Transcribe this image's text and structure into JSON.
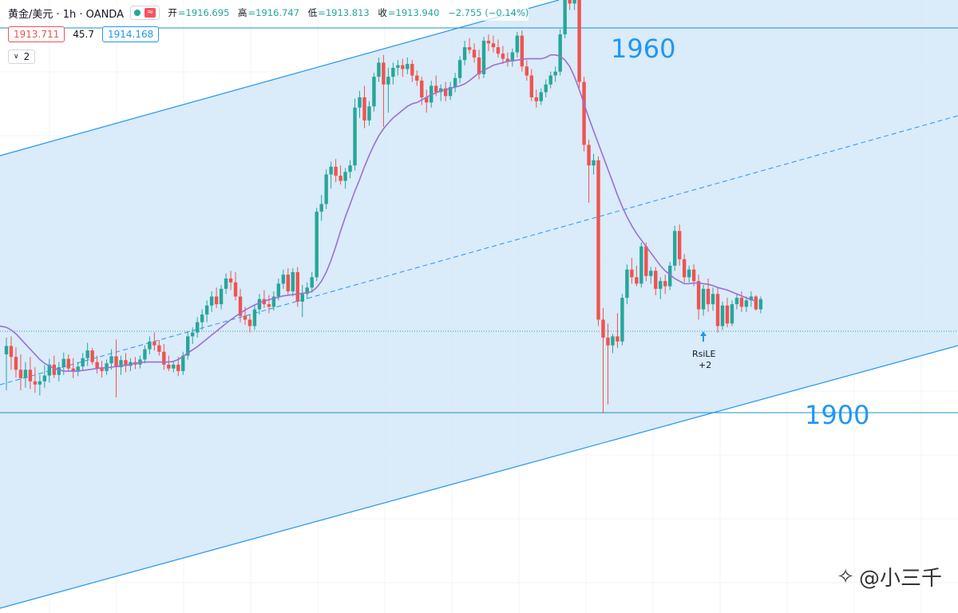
{
  "header": {
    "symbol": "黄金/美元 · 1h · OANDA",
    "approx_badge": "≈",
    "ohlc": {
      "open_label": "开",
      "open": "=1916.695",
      "high_label": "高",
      "high": "=1916.747",
      "low_label": "低",
      "low": "=1913.813",
      "close_label": "收",
      "close": "=1913.940",
      "change": "−2.755 (−0.14%)"
    }
  },
  "quote": {
    "bid": "1913.711",
    "spread": "45.7",
    "ask": "1914.168"
  },
  "indicator_toggle": {
    "label": "2"
  },
  "annotations": {
    "level_high": "1960",
    "level_low": "1900"
  },
  "signal": {
    "label": "RsiLE",
    "sub": "+2"
  },
  "watermark": {
    "text": "@小三千"
  },
  "colors": {
    "up": "#26a69a",
    "down": "#ef5350",
    "channel_fill": "#d6e9f9",
    "channel_line": "#2196f3",
    "ma": "#9c6fd0"
  },
  "chart_data": {
    "type": "candlestick",
    "price_range": [
      1897,
      1968
    ],
    "candles": [
      {
        "o": 1909.2,
        "h": 1911.8,
        "l": 1903.6,
        "c": 1910.5
      },
      {
        "o": 1910.5,
        "h": 1912.0,
        "l": 1906.8,
        "c": 1908.8
      },
      {
        "o": 1908.8,
        "h": 1910.3,
        "l": 1905.6,
        "c": 1906.8
      },
      {
        "o": 1906.8,
        "h": 1909.2,
        "l": 1903.6,
        "c": 1905.5
      },
      {
        "o": 1905.5,
        "h": 1908.0,
        "l": 1904.0,
        "c": 1906.8
      },
      {
        "o": 1906.8,
        "h": 1908.8,
        "l": 1903.8,
        "c": 1905.0
      },
      {
        "o": 1905.0,
        "h": 1907.2,
        "l": 1903.2,
        "c": 1904.5
      },
      {
        "o": 1904.5,
        "h": 1906.0,
        "l": 1902.8,
        "c": 1905.0
      },
      {
        "o": 1905.0,
        "h": 1907.5,
        "l": 1904.0,
        "c": 1905.9
      },
      {
        "o": 1905.9,
        "h": 1908.5,
        "l": 1904.8,
        "c": 1907.6
      },
      {
        "o": 1907.6,
        "h": 1909.0,
        "l": 1905.5,
        "c": 1906.0
      },
      {
        "o": 1906.0,
        "h": 1908.0,
        "l": 1905.0,
        "c": 1907.2
      },
      {
        "o": 1907.2,
        "h": 1909.5,
        "l": 1906.0,
        "c": 1908.5
      },
      {
        "o": 1908.5,
        "h": 1909.2,
        "l": 1906.5,
        "c": 1907.0
      },
      {
        "o": 1907.0,
        "h": 1908.6,
        "l": 1905.5,
        "c": 1906.5
      },
      {
        "o": 1906.5,
        "h": 1908.0,
        "l": 1905.8,
        "c": 1907.3
      },
      {
        "o": 1907.3,
        "h": 1909.4,
        "l": 1906.6,
        "c": 1908.6
      },
      {
        "o": 1908.6,
        "h": 1911.0,
        "l": 1907.4,
        "c": 1909.8
      },
      {
        "o": 1909.8,
        "h": 1910.2,
        "l": 1907.6,
        "c": 1908.0
      },
      {
        "o": 1908.0,
        "h": 1909.0,
        "l": 1906.2,
        "c": 1907.0
      },
      {
        "o": 1907.0,
        "h": 1908.2,
        "l": 1905.6,
        "c": 1906.6
      },
      {
        "o": 1906.6,
        "h": 1908.4,
        "l": 1906.0,
        "c": 1907.8
      },
      {
        "o": 1907.8,
        "h": 1910.0,
        "l": 1906.8,
        "c": 1908.9
      },
      {
        "o": 1908.9,
        "h": 1911.5,
        "l": 1902.5,
        "c": 1907.2
      },
      {
        "o": 1907.2,
        "h": 1909.0,
        "l": 1906.0,
        "c": 1908.3
      },
      {
        "o": 1908.3,
        "h": 1909.4,
        "l": 1906.4,
        "c": 1907.4
      },
      {
        "o": 1907.4,
        "h": 1908.6,
        "l": 1906.6,
        "c": 1908.0
      },
      {
        "o": 1908.0,
        "h": 1908.8,
        "l": 1906.9,
        "c": 1907.6
      },
      {
        "o": 1907.6,
        "h": 1909.0,
        "l": 1907.0,
        "c": 1908.4
      },
      {
        "o": 1908.4,
        "h": 1910.6,
        "l": 1907.8,
        "c": 1910.0
      },
      {
        "o": 1910.0,
        "h": 1912.0,
        "l": 1909.2,
        "c": 1911.2
      },
      {
        "o": 1911.2,
        "h": 1912.6,
        "l": 1909.8,
        "c": 1910.6
      },
      {
        "o": 1910.6,
        "h": 1911.4,
        "l": 1909.0,
        "c": 1909.6
      },
      {
        "o": 1909.6,
        "h": 1910.8,
        "l": 1906.8,
        "c": 1907.6
      },
      {
        "o": 1907.6,
        "h": 1909.0,
        "l": 1906.6,
        "c": 1907.0
      },
      {
        "o": 1907.0,
        "h": 1908.2,
        "l": 1906.4,
        "c": 1907.6
      },
      {
        "o": 1907.6,
        "h": 1908.8,
        "l": 1905.8,
        "c": 1906.6
      },
      {
        "o": 1906.6,
        "h": 1909.6,
        "l": 1906.0,
        "c": 1909.0
      },
      {
        "o": 1909.0,
        "h": 1912.6,
        "l": 1908.4,
        "c": 1912.0
      },
      {
        "o": 1912.0,
        "h": 1913.4,
        "l": 1910.8,
        "c": 1912.6
      },
      {
        "o": 1912.6,
        "h": 1915.0,
        "l": 1911.8,
        "c": 1914.2
      },
      {
        "o": 1914.2,
        "h": 1916.2,
        "l": 1913.0,
        "c": 1915.4
      },
      {
        "o": 1915.4,
        "h": 1917.6,
        "l": 1914.2,
        "c": 1916.8
      },
      {
        "o": 1916.8,
        "h": 1919.0,
        "l": 1915.8,
        "c": 1918.2
      },
      {
        "o": 1918.2,
        "h": 1919.6,
        "l": 1916.4,
        "c": 1917.0
      },
      {
        "o": 1917.0,
        "h": 1920.0,
        "l": 1916.2,
        "c": 1919.4
      },
      {
        "o": 1919.4,
        "h": 1921.8,
        "l": 1918.6,
        "c": 1921.0
      },
      {
        "o": 1921.0,
        "h": 1922.2,
        "l": 1919.2,
        "c": 1920.4
      },
      {
        "o": 1920.4,
        "h": 1922.0,
        "l": 1917.6,
        "c": 1918.2
      },
      {
        "o": 1918.2,
        "h": 1919.4,
        "l": 1914.2,
        "c": 1915.2
      },
      {
        "o": 1915.2,
        "h": 1916.6,
        "l": 1913.8,
        "c": 1914.6
      },
      {
        "o": 1914.6,
        "h": 1915.4,
        "l": 1912.6,
        "c": 1913.6
      },
      {
        "o": 1913.6,
        "h": 1917.0,
        "l": 1913.0,
        "c": 1916.2
      },
      {
        "o": 1916.2,
        "h": 1918.6,
        "l": 1915.4,
        "c": 1917.8
      },
      {
        "o": 1917.8,
        "h": 1919.2,
        "l": 1916.4,
        "c": 1917.0
      },
      {
        "o": 1917.0,
        "h": 1918.4,
        "l": 1915.6,
        "c": 1916.6
      },
      {
        "o": 1916.6,
        "h": 1919.0,
        "l": 1916.0,
        "c": 1918.2
      },
      {
        "o": 1918.2,
        "h": 1921.0,
        "l": 1917.6,
        "c": 1920.2
      },
      {
        "o": 1920.2,
        "h": 1922.4,
        "l": 1919.4,
        "c": 1921.6
      },
      {
        "o": 1921.6,
        "h": 1922.6,
        "l": 1918.4,
        "c": 1919.0
      },
      {
        "o": 1919.0,
        "h": 1922.6,
        "l": 1918.2,
        "c": 1922.0
      },
      {
        "o": 1922.0,
        "h": 1922.8,
        "l": 1916.6,
        "c": 1917.4
      },
      {
        "o": 1917.4,
        "h": 1920.0,
        "l": 1915.0,
        "c": 1918.6
      },
      {
        "o": 1918.6,
        "h": 1920.4,
        "l": 1917.8,
        "c": 1919.6
      },
      {
        "o": 1919.6,
        "h": 1922.0,
        "l": 1918.8,
        "c": 1921.2
      },
      {
        "o": 1921.2,
        "h": 1932.0,
        "l": 1920.6,
        "c": 1931.4
      },
      {
        "o": 1931.4,
        "h": 1934.0,
        "l": 1930.0,
        "c": 1932.6
      },
      {
        "o": 1932.6,
        "h": 1938.0,
        "l": 1931.8,
        "c": 1937.2
      },
      {
        "o": 1937.2,
        "h": 1939.2,
        "l": 1935.0,
        "c": 1938.4
      },
      {
        "o": 1938.4,
        "h": 1939.6,
        "l": 1936.0,
        "c": 1937.0
      },
      {
        "o": 1937.0,
        "h": 1938.6,
        "l": 1935.6,
        "c": 1936.2
      },
      {
        "o": 1936.2,
        "h": 1938.2,
        "l": 1935.0,
        "c": 1937.6
      },
      {
        "o": 1937.6,
        "h": 1939.4,
        "l": 1936.6,
        "c": 1938.6
      },
      {
        "o": 1938.6,
        "h": 1949.0,
        "l": 1937.8,
        "c": 1947.6
      },
      {
        "o": 1947.6,
        "h": 1950.2,
        "l": 1946.0,
        "c": 1949.2
      },
      {
        "o": 1949.2,
        "h": 1951.0,
        "l": 1944.4,
        "c": 1945.6
      },
      {
        "o": 1945.6,
        "h": 1948.6,
        "l": 1944.8,
        "c": 1947.8
      },
      {
        "o": 1947.8,
        "h": 1953.0,
        "l": 1947.0,
        "c": 1952.4
      },
      {
        "o": 1952.4,
        "h": 1955.4,
        "l": 1951.6,
        "c": 1954.6
      },
      {
        "o": 1954.6,
        "h": 1955.8,
        "l": 1944.6,
        "c": 1951.2
      },
      {
        "o": 1951.2,
        "h": 1953.8,
        "l": 1946.8,
        "c": 1952.4
      },
      {
        "o": 1952.4,
        "h": 1954.6,
        "l": 1951.2,
        "c": 1953.8
      },
      {
        "o": 1953.8,
        "h": 1955.0,
        "l": 1952.6,
        "c": 1954.2
      },
      {
        "o": 1954.2,
        "h": 1955.2,
        "l": 1952.4,
        "c": 1953.6
      },
      {
        "o": 1953.6,
        "h": 1955.4,
        "l": 1952.8,
        "c": 1954.4
      },
      {
        "o": 1954.4,
        "h": 1955.0,
        "l": 1951.6,
        "c": 1952.6
      },
      {
        "o": 1952.6,
        "h": 1953.4,
        "l": 1951.0,
        "c": 1951.8
      },
      {
        "o": 1951.8,
        "h": 1952.4,
        "l": 1948.0,
        "c": 1949.2
      },
      {
        "o": 1949.2,
        "h": 1950.4,
        "l": 1946.8,
        "c": 1948.4
      },
      {
        "o": 1948.4,
        "h": 1951.8,
        "l": 1947.6,
        "c": 1951.0
      },
      {
        "o": 1951.0,
        "h": 1952.6,
        "l": 1949.4,
        "c": 1950.0
      },
      {
        "o": 1950.0,
        "h": 1951.2,
        "l": 1948.6,
        "c": 1950.6
      },
      {
        "o": 1950.6,
        "h": 1951.6,
        "l": 1948.6,
        "c": 1949.4
      },
      {
        "o": 1949.4,
        "h": 1951.6,
        "l": 1948.8,
        "c": 1950.8
      },
      {
        "o": 1950.8,
        "h": 1953.0,
        "l": 1950.0,
        "c": 1952.2
      },
      {
        "o": 1952.2,
        "h": 1955.6,
        "l": 1951.4,
        "c": 1955.0
      },
      {
        "o": 1955.0,
        "h": 1958.0,
        "l": 1954.2,
        "c": 1957.0
      },
      {
        "o": 1957.0,
        "h": 1958.4,
        "l": 1956.0,
        "c": 1956.6
      },
      {
        "o": 1956.6,
        "h": 1957.6,
        "l": 1954.6,
        "c": 1955.4
      },
      {
        "o": 1955.4,
        "h": 1956.6,
        "l": 1952.0,
        "c": 1952.8
      },
      {
        "o": 1952.8,
        "h": 1958.6,
        "l": 1952.2,
        "c": 1958.0
      },
      {
        "o": 1958.0,
        "h": 1959.0,
        "l": 1956.4,
        "c": 1957.6
      },
      {
        "o": 1957.6,
        "h": 1958.8,
        "l": 1956.2,
        "c": 1957.0
      },
      {
        "o": 1957.0,
        "h": 1958.2,
        "l": 1955.4,
        "c": 1956.0
      },
      {
        "o": 1956.0,
        "h": 1957.2,
        "l": 1954.4,
        "c": 1955.2
      },
      {
        "o": 1955.2,
        "h": 1956.2,
        "l": 1954.0,
        "c": 1954.8
      },
      {
        "o": 1954.8,
        "h": 1956.8,
        "l": 1954.0,
        "c": 1956.2
      },
      {
        "o": 1956.2,
        "h": 1959.4,
        "l": 1955.4,
        "c": 1958.8
      },
      {
        "o": 1958.8,
        "h": 1959.6,
        "l": 1953.2,
        "c": 1954.0
      },
      {
        "o": 1954.0,
        "h": 1955.0,
        "l": 1951.8,
        "c": 1952.6
      },
      {
        "o": 1952.6,
        "h": 1953.6,
        "l": 1948.6,
        "c": 1949.2
      },
      {
        "o": 1949.2,
        "h": 1950.4,
        "l": 1947.6,
        "c": 1948.6
      },
      {
        "o": 1948.6,
        "h": 1950.6,
        "l": 1948.0,
        "c": 1950.0
      },
      {
        "o": 1950.0,
        "h": 1952.0,
        "l": 1949.2,
        "c": 1951.2
      },
      {
        "o": 1951.2,
        "h": 1953.2,
        "l": 1950.6,
        "c": 1952.6
      },
      {
        "o": 1952.6,
        "h": 1954.0,
        "l": 1951.6,
        "c": 1953.2
      },
      {
        "o": 1953.2,
        "h": 1959.8,
        "l": 1952.6,
        "c": 1959.0
      },
      {
        "o": 1959.0,
        "h": 1965.8,
        "l": 1958.4,
        "c": 1965.2
      },
      {
        "o": 1965.2,
        "h": 1966.0,
        "l": 1962.8,
        "c": 1963.8
      },
      {
        "o": 1963.8,
        "h": 1965.8,
        "l": 1962.8,
        "c": 1965.2
      },
      {
        "o": 1965.2,
        "h": 1965.6,
        "l": 1950.6,
        "c": 1951.6
      },
      {
        "o": 1951.6,
        "h": 1952.4,
        "l": 1940.8,
        "c": 1941.8
      },
      {
        "o": 1941.8,
        "h": 1942.6,
        "l": 1932.8,
        "c": 1938.6
      },
      {
        "o": 1938.6,
        "h": 1940.4,
        "l": 1937.2,
        "c": 1939.4
      },
      {
        "o": 1939.4,
        "h": 1940.0,
        "l": 1913.6,
        "c": 1914.6
      },
      {
        "o": 1914.6,
        "h": 1916.4,
        "l": 1900.0,
        "c": 1911.8
      },
      {
        "o": 1911.8,
        "h": 1914.0,
        "l": 1901.4,
        "c": 1910.6
      },
      {
        "o": 1910.6,
        "h": 1912.4,
        "l": 1909.4,
        "c": 1912.0
      },
      {
        "o": 1912.0,
        "h": 1915.6,
        "l": 1910.2,
        "c": 1911.2
      },
      {
        "o": 1911.2,
        "h": 1918.6,
        "l": 1910.6,
        "c": 1918.0
      },
      {
        "o": 1918.0,
        "h": 1923.2,
        "l": 1917.0,
        "c": 1922.4
      },
      {
        "o": 1922.4,
        "h": 1924.2,
        "l": 1920.2,
        "c": 1921.2
      },
      {
        "o": 1921.2,
        "h": 1923.0,
        "l": 1919.8,
        "c": 1920.2
      },
      {
        "o": 1920.2,
        "h": 1926.6,
        "l": 1919.6,
        "c": 1926.0
      },
      {
        "o": 1926.0,
        "h": 1926.6,
        "l": 1920.6,
        "c": 1921.4
      },
      {
        "o": 1921.4,
        "h": 1922.8,
        "l": 1920.2,
        "c": 1922.2
      },
      {
        "o": 1922.2,
        "h": 1922.8,
        "l": 1918.4,
        "c": 1919.4
      },
      {
        "o": 1919.4,
        "h": 1921.2,
        "l": 1917.8,
        "c": 1920.6
      },
      {
        "o": 1920.6,
        "h": 1921.6,
        "l": 1918.6,
        "c": 1919.8
      },
      {
        "o": 1919.8,
        "h": 1923.6,
        "l": 1919.2,
        "c": 1923.0
      },
      {
        "o": 1923.0,
        "h": 1929.2,
        "l": 1922.2,
        "c": 1928.4
      },
      {
        "o": 1928.4,
        "h": 1929.4,
        "l": 1923.0,
        "c": 1924.0
      },
      {
        "o": 1924.0,
        "h": 1924.8,
        "l": 1920.4,
        "c": 1921.2
      },
      {
        "o": 1921.2,
        "h": 1923.0,
        "l": 1920.4,
        "c": 1922.4
      },
      {
        "o": 1922.4,
        "h": 1923.2,
        "l": 1919.8,
        "c": 1920.6
      },
      {
        "o": 1920.6,
        "h": 1921.6,
        "l": 1914.6,
        "c": 1916.2
      },
      {
        "o": 1916.2,
        "h": 1920.0,
        "l": 1915.2,
        "c": 1919.4
      },
      {
        "o": 1919.4,
        "h": 1921.0,
        "l": 1915.8,
        "c": 1917.0
      },
      {
        "o": 1917.0,
        "h": 1919.6,
        "l": 1916.0,
        "c": 1918.6
      },
      {
        "o": 1918.6,
        "h": 1919.6,
        "l": 1912.6,
        "c": 1913.6
      },
      {
        "o": 1913.6,
        "h": 1917.4,
        "l": 1913.0,
        "c": 1916.8
      },
      {
        "o": 1916.8,
        "h": 1918.0,
        "l": 1913.4,
        "c": 1914.0
      },
      {
        "o": 1914.0,
        "h": 1917.6,
        "l": 1913.6,
        "c": 1917.0
      },
      {
        "o": 1917.0,
        "h": 1918.6,
        "l": 1916.2,
        "c": 1918.0
      },
      {
        "o": 1918.0,
        "h": 1919.0,
        "l": 1915.8,
        "c": 1916.6
      },
      {
        "o": 1916.6,
        "h": 1918.2,
        "l": 1915.8,
        "c": 1917.6
      },
      {
        "o": 1917.6,
        "h": 1919.0,
        "l": 1916.6,
        "c": 1918.2
      },
      {
        "o": 1918.2,
        "h": 1918.4,
        "l": 1916.0,
        "c": 1916.2
      },
      {
        "o": 1916.2,
        "h": 1918.2,
        "l": 1915.6,
        "c": 1917.8
      }
    ],
    "ma_line": [
      1913.4,
      1913.0,
      1912.4,
      1911.6,
      1910.8,
      1910.0,
      1909.2,
      1908.4,
      1907.8,
      1907.4,
      1907.0,
      1906.8,
      1906.6,
      1906.6,
      1906.6,
      1906.6,
      1906.7,
      1906.8,
      1906.9,
      1907.0,
      1907.1,
      1907.1,
      1907.2,
      1907.3,
      1907.4,
      1907.5,
      1907.6,
      1907.8,
      1907.9,
      1908.0,
      1908.0,
      1908.0,
      1908.0,
      1908.0,
      1908.0,
      1908.1,
      1908.4,
      1908.9,
      1909.4,
      1909.9,
      1910.4,
      1911.0,
      1911.6,
      1912.2,
      1912.8,
      1913.4,
      1914.0,
      1914.6,
      1915.1,
      1915.6,
      1916.1,
      1916.5,
      1916.9,
      1917.2,
      1917.5,
      1917.7,
      1917.9,
      1918.1,
      1918.3,
      1918.4,
      1918.5,
      1918.6,
      1918.7,
      1918.8,
      1919.0,
      1919.6,
      1920.6,
      1922.0,
      1923.8,
      1926.0,
      1928.4,
      1930.6,
      1932.6,
      1934.6,
      1936.4,
      1938.4,
      1940.2,
      1941.8,
      1943.2,
      1944.3,
      1945.2,
      1946.0,
      1946.6,
      1947.2,
      1947.8,
      1948.2,
      1948.4,
      1948.8,
      1949.2,
      1949.6,
      1949.9,
      1950.2,
      1950.4,
      1950.6,
      1950.8,
      1951.0,
      1951.3,
      1951.8,
      1952.4,
      1953.0,
      1953.4,
      1953.8,
      1954.2,
      1954.4,
      1954.6,
      1954.8,
      1954.9,
      1955.0,
      1955.1,
      1955.2,
      1955.2,
      1955.2,
      1955.2,
      1955.4,
      1955.8,
      1955.8,
      1955.6,
      1955.0,
      1954.0,
      1952.4,
      1950.4,
      1948.2,
      1946.0,
      1944.0,
      1942.0,
      1940.0,
      1938.0,
      1936.0,
      1934.0,
      1932.2,
      1930.6,
      1929.2,
      1928.0,
      1927.0,
      1926.0,
      1925.0,
      1924.0,
      1923.0,
      1922.2,
      1921.6,
      1921.0,
      1920.6,
      1920.2,
      1920.2,
      1920.3,
      1920.3,
      1920.2,
      1920.1,
      1919.9,
      1919.6,
      1919.4,
      1919.2,
      1918.9,
      1918.6,
      1918.3,
      1918.0,
      1917.7,
      1917.5
    ]
  }
}
